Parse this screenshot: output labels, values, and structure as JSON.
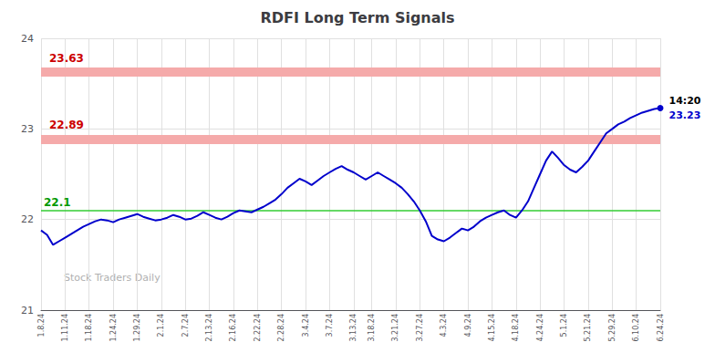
{
  "chart_data": {
    "type": "line",
    "title": "RDFI Long Term Signals",
    "categories": [
      "1.8.24",
      null,
      null,
      null,
      "1.11.24",
      null,
      null,
      null,
      "1.18.24",
      null,
      null,
      null,
      "1.24.24",
      null,
      null,
      null,
      "1.29.24",
      null,
      null,
      null,
      "2.1.24",
      null,
      null,
      null,
      "2.7.24",
      null,
      null,
      null,
      "2.13.24",
      null,
      null,
      null,
      "2.16.24",
      null,
      null,
      null,
      "2.22.24",
      null,
      null,
      null,
      "2.28.24",
      null,
      null,
      null,
      "3.4.24",
      null,
      null,
      null,
      "3.7.24",
      null,
      null,
      null,
      "3.13.24",
      null,
      null,
      "3.18.24",
      null,
      null,
      null,
      "3.21.24",
      null,
      null,
      null,
      "3.27.24",
      null,
      null,
      null,
      "4.3.24",
      null,
      null,
      null,
      "4.9.24",
      null,
      null,
      null,
      "4.15.24",
      null,
      null,
      null,
      "4.18.24",
      null,
      null,
      null,
      "4.24.24",
      null,
      null,
      null,
      "5.1.24",
      null,
      null,
      null,
      "5.21.24",
      null,
      null,
      null,
      "5.29.24",
      null,
      null,
      null,
      "6.10.24",
      null,
      null,
      null,
      "6.24.24"
    ],
    "series": [
      {
        "color": "#0000cc",
        "marker": "circle",
        "values": [
          21.88,
          21.83,
          21.72,
          21.76,
          21.8,
          21.84,
          21.88,
          21.92,
          21.95,
          21.98,
          22.0,
          21.99,
          21.97,
          22.0,
          22.02,
          22.04,
          22.06,
          22.03,
          22.01,
          21.99,
          22.0,
          22.02,
          22.05,
          22.03,
          22.0,
          22.01,
          22.04,
          22.08,
          22.05,
          22.02,
          22.0,
          22.03,
          22.07,
          22.1,
          22.09,
          22.08,
          22.11,
          22.14,
          22.18,
          22.22,
          22.28,
          22.35,
          22.4,
          22.45,
          22.42,
          22.38,
          22.43,
          22.48,
          22.52,
          22.56,
          22.59,
          22.55,
          22.52,
          22.48,
          22.44,
          22.48,
          22.52,
          22.48,
          22.44,
          22.4,
          22.35,
          22.28,
          22.2,
          22.1,
          21.98,
          21.82,
          21.78,
          21.76,
          21.8,
          21.85,
          21.9,
          21.88,
          21.92,
          21.98,
          22.02,
          22.05,
          22.08,
          22.1,
          22.05,
          22.02,
          22.1,
          22.2,
          22.35,
          22.5,
          22.65,
          22.75,
          22.68,
          22.6,
          22.55,
          22.52,
          22.58,
          22.65,
          22.75,
          22.85,
          22.95,
          23.0,
          23.05,
          23.08,
          23.12,
          23.15,
          23.18,
          23.2,
          23.22,
          23.23
        ],
        "end_labels": [
          {
            "text": "14:20",
            "color": "#000000"
          },
          {
            "text": "23.23",
            "color": "#0000cc"
          }
        ]
      }
    ],
    "reference_lines": [
      {
        "value": 22.1,
        "label": "22.1",
        "color": "#33cc33",
        "label_color": "#009900",
        "line_style": "solid"
      },
      {
        "value": 22.89,
        "label": "22.89",
        "color": "#f5aaaa",
        "label_color": "#cc0000",
        "line_style": "band"
      },
      {
        "value": 23.63,
        "label": "23.63",
        "color": "#f5aaaa",
        "label_color": "#cc0000",
        "line_style": "band"
      }
    ],
    "watermark": {
      "text": "Stock Traders Daily",
      "color": "#b0b0b0"
    },
    "ylim": [
      21.0,
      24.0
    ],
    "yticks": [
      21,
      22,
      23,
      24
    ],
    "grid": true
  }
}
